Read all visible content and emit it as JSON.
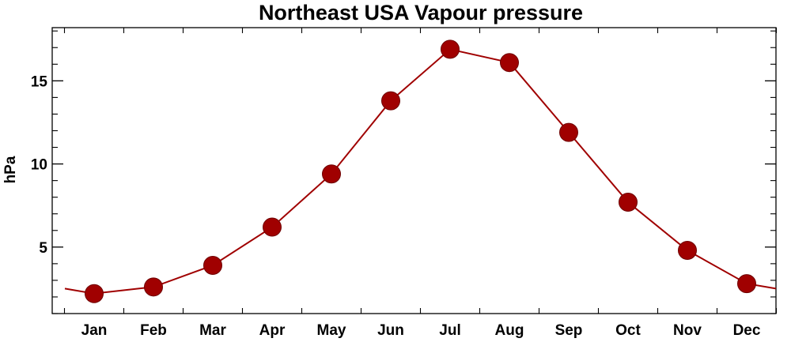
{
  "chart_data": {
    "type": "line",
    "title": "Northeast USA Vapour pressure",
    "xlabel": "",
    "ylabel": "hPa",
    "categories": [
      "Jan",
      "Feb",
      "Mar",
      "Apr",
      "May",
      "Jun",
      "Jul",
      "Aug",
      "Sep",
      "Oct",
      "Nov",
      "Dec"
    ],
    "series": [
      {
        "values": [
          2.2,
          2.6,
          3.9,
          6.2,
          9.4,
          13.8,
          16.9,
          16.1,
          11.9,
          7.7,
          4.8,
          2.8
        ]
      }
    ],
    "ylim": [
      1,
      18.2
    ],
    "yticks": [
      5,
      10,
      15
    ],
    "line_edge_left": 2.5,
    "line_edge_right": 2.5,
    "grid": false,
    "colors": {
      "series": "#a00000",
      "axes": "#000000"
    }
  }
}
